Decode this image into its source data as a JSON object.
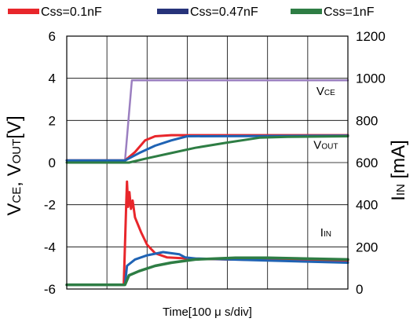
{
  "chart_data": {
    "type": "line",
    "xlabel": "Time[100 μ s/div]",
    "ylabel_left": {
      "main": "V",
      "sub1": "CE",
      "mid": ", V",
      "sub2": "OUT",
      "end": "[V]"
    },
    "ylabel_right": {
      "main": "I",
      "sub": "IN",
      "end": " [mA]"
    },
    "x_range": [
      0,
      7
    ],
    "x_divisions": 7,
    "y_left_range": [
      -6,
      6
    ],
    "y_left_ticks": [
      "6",
      "4",
      "2",
      "0",
      "-2",
      "-4",
      "-6"
    ],
    "y_right_range": [
      0,
      1200
    ],
    "y_right_ticks": [
      "1200",
      "1000",
      "800",
      "600",
      "400",
      "200",
      "0"
    ],
    "grid": true,
    "legend_position": "top",
    "legend": [
      {
        "name": "Css=0.1nF",
        "color": "#e8262b"
      },
      {
        "name": "Css=0.47nF",
        "color": "#27337a"
      },
      {
        "name": "Css=1nF",
        "color": "#2e7d44"
      }
    ],
    "annotations": [
      {
        "main": "V",
        "sub": "CE",
        "x": 6.45,
        "y_left": 3.2
      },
      {
        "main": "V",
        "sub": "OUT",
        "x": 6.45,
        "y_left": 0.65
      },
      {
        "main": "I",
        "sub": "IN",
        "x": 6.45,
        "y_left": -3.5
      }
    ],
    "series": [
      {
        "key": "vce",
        "color": "#9b7fc0",
        "axis": "left",
        "width": 2.5,
        "points": [
          [
            0,
            0.1
          ],
          [
            1.45,
            0.1
          ],
          [
            1.62,
            3.9
          ],
          [
            7,
            3.9
          ]
        ]
      },
      {
        "key": "vout_01",
        "color": "#e8262b",
        "axis": "left",
        "width": 3,
        "points": [
          [
            0,
            0.1
          ],
          [
            1.45,
            0.1
          ],
          [
            1.7,
            0.5
          ],
          [
            1.95,
            1.05
          ],
          [
            2.2,
            1.25
          ],
          [
            2.6,
            1.3
          ],
          [
            7,
            1.3
          ]
        ]
      },
      {
        "key": "vout_047",
        "color": "#1f63b4",
        "axis": "left",
        "width": 3,
        "points": [
          [
            0,
            0.1
          ],
          [
            1.45,
            0.1
          ],
          [
            1.8,
            0.45
          ],
          [
            2.2,
            0.8
          ],
          [
            2.6,
            1.05
          ],
          [
            3.0,
            1.25
          ],
          [
            7,
            1.28
          ]
        ]
      },
      {
        "key": "vout_1",
        "color": "#2e7d44",
        "axis": "left",
        "width": 3,
        "points": [
          [
            0,
            0.0
          ],
          [
            1.55,
            0.0
          ],
          [
            2.0,
            0.2
          ],
          [
            2.6,
            0.45
          ],
          [
            3.2,
            0.7
          ],
          [
            4.0,
            0.95
          ],
          [
            4.8,
            1.18
          ],
          [
            5.5,
            1.22
          ],
          [
            7,
            1.25
          ]
        ]
      },
      {
        "key": "iin_01",
        "color": "#e8262b",
        "axis": "right",
        "width": 3,
        "points": [
          [
            0,
            20
          ],
          [
            1.42,
            20
          ],
          [
            1.48,
            400
          ],
          [
            1.5,
            510
          ],
          [
            1.53,
            390
          ],
          [
            1.56,
            460
          ],
          [
            1.6,
            380
          ],
          [
            1.64,
            420
          ],
          [
            1.7,
            340
          ],
          [
            1.85,
            270
          ],
          [
            2.0,
            210
          ],
          [
            2.2,
            170
          ],
          [
            2.5,
            150
          ],
          [
            3.0,
            145
          ],
          [
            4.0,
            140
          ],
          [
            5.0,
            138
          ],
          [
            7,
            135
          ]
        ]
      },
      {
        "key": "iin_047",
        "color": "#1f63b4",
        "axis": "right",
        "width": 3,
        "points": [
          [
            0,
            20
          ],
          [
            1.45,
            20
          ],
          [
            1.5,
            110
          ],
          [
            1.7,
            140
          ],
          [
            2.0,
            160
          ],
          [
            2.4,
            175
          ],
          [
            2.6,
            170
          ],
          [
            2.8,
            165
          ],
          [
            2.95,
            150
          ],
          [
            3.2,
            145
          ],
          [
            5.0,
            135
          ],
          [
            7,
            125
          ]
        ]
      },
      {
        "key": "iin_1",
        "color": "#2e7d44",
        "axis": "right",
        "width": 3.5,
        "points": [
          [
            0,
            20
          ],
          [
            1.45,
            20
          ],
          [
            1.55,
            65
          ],
          [
            1.8,
            85
          ],
          [
            2.2,
            110
          ],
          [
            2.6,
            125
          ],
          [
            3.2,
            140
          ],
          [
            4.2,
            148
          ],
          [
            5.0,
            148
          ],
          [
            7,
            140
          ]
        ]
      }
    ]
  }
}
